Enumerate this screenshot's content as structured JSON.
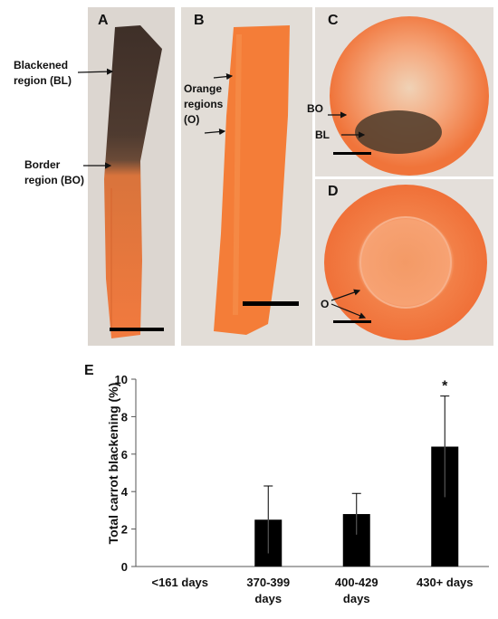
{
  "panels": {
    "A": {
      "letter": "A",
      "label_blackened_1": "Blackened",
      "label_blackened_2": "region (BL)",
      "label_border_1": "Border",
      "label_border_2": "region (BO)"
    },
    "B": {
      "letter": "B",
      "label_orange_1": "Orange",
      "label_orange_2": "regions",
      "label_orange_3": "(O)"
    },
    "C": {
      "letter": "C",
      "label_bo": "BO",
      "label_bl": "BL"
    },
    "D": {
      "letter": "D",
      "label_o": "O"
    }
  },
  "colors": {
    "carrot_orange": "#f27a3e",
    "blackened": "#4e3a30",
    "background_photo": "#dcd6d0",
    "bar_fill": "#000000"
  },
  "chart_data": {
    "type": "bar",
    "panel_letter": "E",
    "categories": [
      [
        "<161 days"
      ],
      [
        "370-399",
        "days"
      ],
      [
        "400-429",
        "days"
      ],
      [
        "430+ days"
      ]
    ],
    "values": [
      0,
      2.5,
      2.8,
      6.4
    ],
    "error_upper": [
      0,
      4.3,
      3.9,
      9.1
    ],
    "error_lower": [
      0,
      0.7,
      1.7,
      3.7
    ],
    "annotations": [
      "",
      "",
      "",
      "*"
    ],
    "ylabel": "Total carrot blackening (%)",
    "xlabel": "",
    "ylim": [
      0,
      10
    ],
    "yticks": [
      0,
      2,
      4,
      6,
      8,
      10
    ],
    "grid": false
  }
}
